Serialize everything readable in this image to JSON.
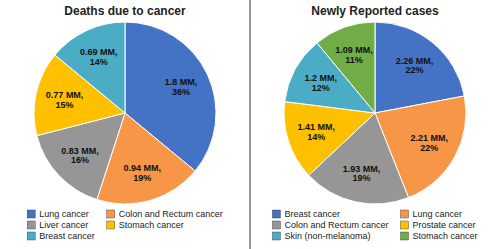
{
  "chart_data": [
    {
      "type": "pie",
      "title": "Deaths due to cancer",
      "categories": [
        "Lung cancer",
        "Colon and Rectum cancer",
        "Liver cancer",
        "Stomach cancer",
        "Breast cancer"
      ],
      "values": [
        36,
        19,
        16,
        15,
        14
      ],
      "value_labels": [
        "1.8 MM,\n36%",
        "0.94 MM,\n19%",
        "0.83 MM,\n16%",
        "0.77 MM,\n15%",
        "0.69 MM,\n14%"
      ],
      "colors": [
        "#4472c4",
        "#f79646",
        "#969696",
        "#ffc000",
        "#4bacc6"
      ],
      "data_labels": true,
      "legend": "bottom"
    },
    {
      "type": "pie",
      "title": "Newly Reported cases",
      "categories": [
        "Breast cancer",
        "Lung cancer",
        "Colon and Rectum cancer",
        "Prostate cancer",
        "Skin (non-melanoma)",
        "Stomach cancer"
      ],
      "values": [
        22,
        22,
        19,
        14,
        12,
        11
      ],
      "value_labels": [
        "2.26 MM,\n22%",
        "2.21 MM,\n22%",
        "1.93 MM,\n19%",
        "1.41 MM,\n14%",
        "1.2 MM,\n12%",
        "1.09 MM,\n11%"
      ],
      "colors": [
        "#4472c4",
        "#f79646",
        "#969696",
        "#ffc000",
        "#4bacc6",
        "#70ad47"
      ],
      "data_labels": true,
      "legend": "bottom"
    }
  ]
}
